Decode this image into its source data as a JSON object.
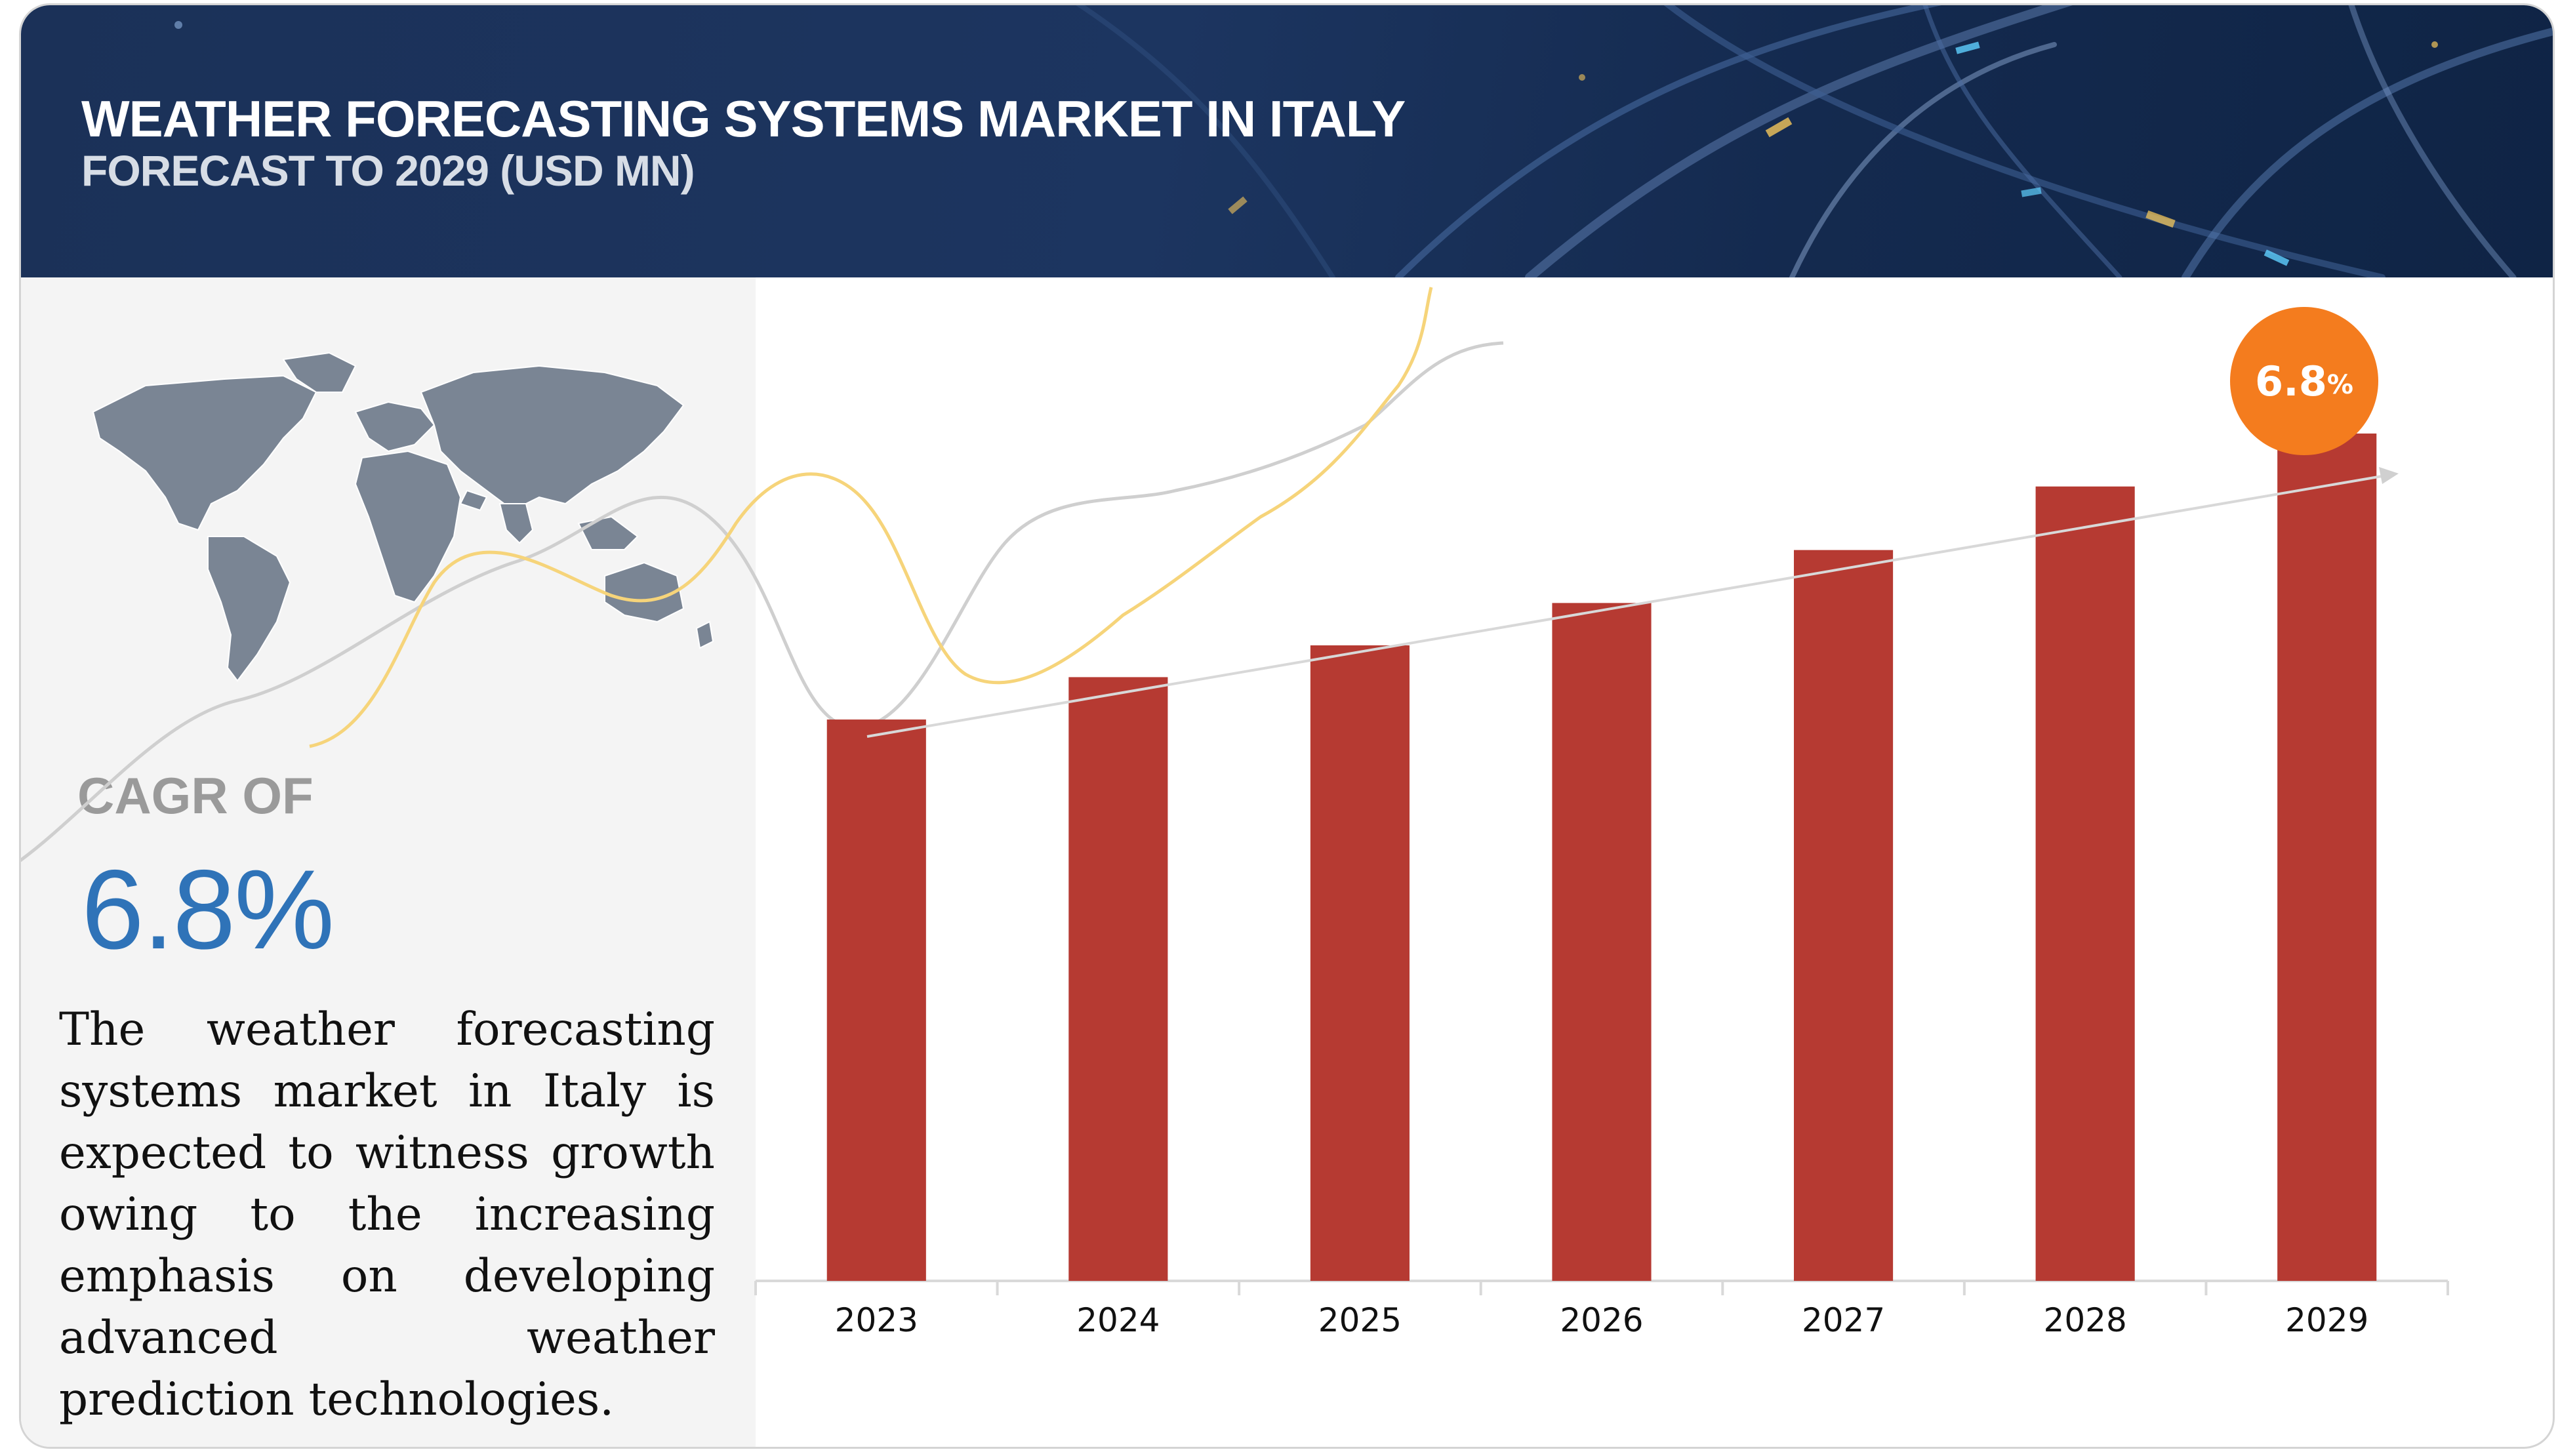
{
  "header": {
    "title": "WEATHER FORECASTING SYSTEMS MARKET IN ITALY",
    "subtitle": "FORECAST TO 2029 (USD MN)"
  },
  "summary": {
    "cagr_label": "CAGR OF",
    "cagr_value": "6.8%",
    "description": "The weather forecasting systems market in Italy is expected to witness growth owing to the increasing emphasis on developing advanced weather prediction technologies."
  },
  "callout": {
    "value": "6.8",
    "unit": "%"
  },
  "icons": {
    "map": "world-map-icon",
    "trend": "trend-arrow-icon"
  },
  "colors": {
    "bar": "#b63a32",
    "banner": "#1c3560",
    "cagr": "#2f73b8",
    "callout": "#f47c1e"
  },
  "chart_data": {
    "type": "bar",
    "categories": [
      "2023",
      "2024",
      "2025",
      "2026",
      "2027",
      "2028",
      "2029"
    ],
    "series": [
      {
        "values": [
          53,
          57,
          60,
          64,
          69,
          75,
          80
        ]
      }
    ],
    "ylim": [
      0,
      100
    ],
    "grid": false,
    "legend": "none",
    "title": "WEATHER FORECASTING SYSTEMS MARKET IN ITALY",
    "subtitle": "FORECAST TO 2029 (USD MN)",
    "annotations": [
      "6.8%"
    ]
  }
}
